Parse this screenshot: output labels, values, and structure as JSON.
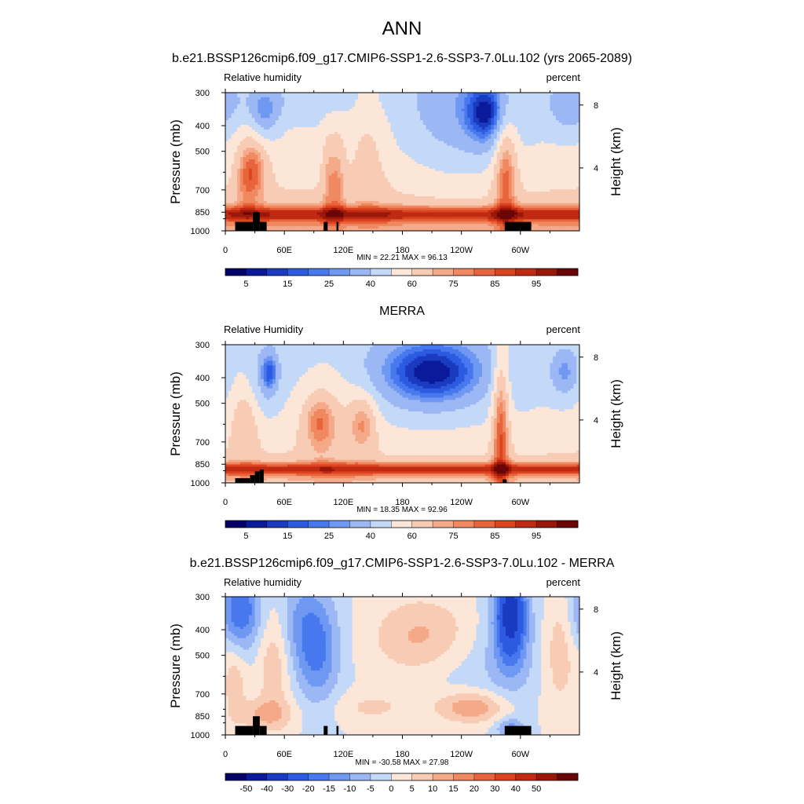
{
  "figure": {
    "title": "ANN"
  },
  "colors": {
    "land_mask": "#000000",
    "frame": "#000000"
  },
  "chart_data": [
    {
      "type": "heatmap",
      "title": "b.e21.BSSP126cmip6.f09_g17.CMIP6-SSP1-2.6-SSP3-7.0Lu.102 (yrs 2065-2089)",
      "left_label": "Relative humidity",
      "right_label": "percent",
      "ylabel": "Pressure (mb)",
      "y2label": "Height (km)",
      "x_ticks": [
        "0",
        "60E",
        "120E",
        "180",
        "120W",
        "60W"
      ],
      "x_tick_values": [
        0,
        60,
        120,
        180,
        240,
        300
      ],
      "xlim": [
        0,
        360
      ],
      "y_ticks": [
        "300",
        "400",
        "500",
        "700",
        "850",
        "1000"
      ],
      "y_tick_values": [
        300,
        400,
        500,
        700,
        850,
        1000
      ],
      "ylim": [
        1000,
        300
      ],
      "y_scale": "log",
      "y2_ticks": [
        "8",
        "4"
      ],
      "y2_tick_values": [
        8,
        4
      ],
      "min_max_text": "MIN = 22.21  MAX = 96.13",
      "min": 22.21,
      "max": 96.13,
      "colorbar_labels": [
        "5",
        "15",
        "25",
        "40",
        "60",
        "75",
        "85",
        "95"
      ],
      "colorbar_colors": [
        "#03006a",
        "#0b1a9a",
        "#1a3ac0",
        "#2c5ae0",
        "#4878ee",
        "#6e98f2",
        "#9cb8f4",
        "#c4d8f8",
        "#fbe6d8",
        "#f8ccb4",
        "#f4aa88",
        "#f08860",
        "#e8643c",
        "#dc4420",
        "#c02a12",
        "#9a180a",
        "#6a0606"
      ],
      "land_blocks": [
        {
          "lon0": 10,
          "lon1": 28,
          "p": 925
        },
        {
          "lon0": 28,
          "lon1": 35,
          "p": 850
        },
        {
          "lon0": 35,
          "lon1": 42,
          "p": 925
        },
        {
          "lon0": 100,
          "lon1": 104,
          "p": 925
        },
        {
          "lon0": 113,
          "lon1": 115,
          "p": 925
        },
        {
          "lon0": 284,
          "lon1": 311,
          "p": 925
        }
      ]
    },
    {
      "type": "heatmap",
      "title": "MERRA",
      "left_label": "Relative Humidity",
      "right_label": "percent",
      "ylabel": "Pressure (mb)",
      "y2label": "Height (km)",
      "x_ticks": [
        "0",
        "60E",
        "120E",
        "180",
        "120W",
        "60W"
      ],
      "x_tick_values": [
        0,
        60,
        120,
        180,
        240,
        300
      ],
      "xlim": [
        0,
        360
      ],
      "y_ticks": [
        "300",
        "400",
        "500",
        "700",
        "850",
        "1000"
      ],
      "y_tick_values": [
        300,
        400,
        500,
        700,
        850,
        1000
      ],
      "ylim": [
        1000,
        300
      ],
      "y_scale": "log",
      "y2_ticks": [
        "8",
        "4"
      ],
      "y2_tick_values": [
        8,
        4
      ],
      "min_max_text": "MIN = 18.35  MAX = 92.96",
      "min": 18.35,
      "max": 92.96,
      "colorbar_labels": [
        "5",
        "15",
        "25",
        "40",
        "60",
        "75",
        "85",
        "95"
      ],
      "colorbar_colors": [
        "#03006a",
        "#0b1a9a",
        "#1a3ac0",
        "#2c5ae0",
        "#4878ee",
        "#6e98f2",
        "#9cb8f4",
        "#c4d8f8",
        "#fbe6d8",
        "#f8ccb4",
        "#f4aa88",
        "#f08860",
        "#e8643c",
        "#dc4420",
        "#c02a12",
        "#9a180a",
        "#6a0606"
      ],
      "land_blocks": [
        {
          "lon0": 10,
          "lon1": 25,
          "p": 960
        },
        {
          "lon0": 25,
          "lon1": 30,
          "p": 935
        },
        {
          "lon0": 30,
          "lon1": 35,
          "p": 905
        },
        {
          "lon0": 35,
          "lon1": 39,
          "p": 890
        },
        {
          "lon0": 282,
          "lon1": 286,
          "p": 970
        }
      ]
    },
    {
      "type": "heatmap",
      "title": "b.e21.BSSP126cmip6.f09_g17.CMIP6-SSP1-2.6-SSP3-7.0Lu.102 - MERRA",
      "left_label": "Relative humidity",
      "right_label": "percent",
      "ylabel": "Pressure (mb)",
      "y2label": "Height (km)",
      "x_ticks": [
        "0",
        "60E",
        "120E",
        "180",
        "120W",
        "60W"
      ],
      "x_tick_values": [
        0,
        60,
        120,
        180,
        240,
        300
      ],
      "xlim": [
        0,
        360
      ],
      "y_ticks": [
        "300",
        "400",
        "500",
        "700",
        "850",
        "1000"
      ],
      "y_tick_values": [
        300,
        400,
        500,
        700,
        850,
        1000
      ],
      "ylim": [
        1000,
        300
      ],
      "y_scale": "log",
      "y2_ticks": [
        "8",
        "4"
      ],
      "y2_tick_values": [
        8,
        4
      ],
      "min_max_text": "MIN = -30.58  MAX = 27.98",
      "min": -30.58,
      "max": 27.98,
      "colorbar_labels": [
        "-50",
        "-40",
        "-30",
        "-20",
        "-15",
        "-10",
        "-5",
        "0",
        "5",
        "10",
        "15",
        "20",
        "30",
        "40",
        "50"
      ],
      "colorbar_colors": [
        "#03006a",
        "#0b1a9a",
        "#1a3ac0",
        "#2c5ae0",
        "#4878ee",
        "#6e98f2",
        "#9cb8f4",
        "#c4d8f8",
        "#fbe6d8",
        "#f8ccb4",
        "#f4aa88",
        "#f08860",
        "#e8643c",
        "#dc4420",
        "#c02a12",
        "#9a180a",
        "#6a0606"
      ],
      "land_blocks": [
        {
          "lon0": 10,
          "lon1": 28,
          "p": 925
        },
        {
          "lon0": 28,
          "lon1": 35,
          "p": 850
        },
        {
          "lon0": 35,
          "lon1": 42,
          "p": 925
        },
        {
          "lon0": 100,
          "lon1": 104,
          "p": 925
        },
        {
          "lon0": 113,
          "lon1": 115,
          "p": 925
        },
        {
          "lon0": 284,
          "lon1": 311,
          "p": 925
        }
      ]
    }
  ]
}
